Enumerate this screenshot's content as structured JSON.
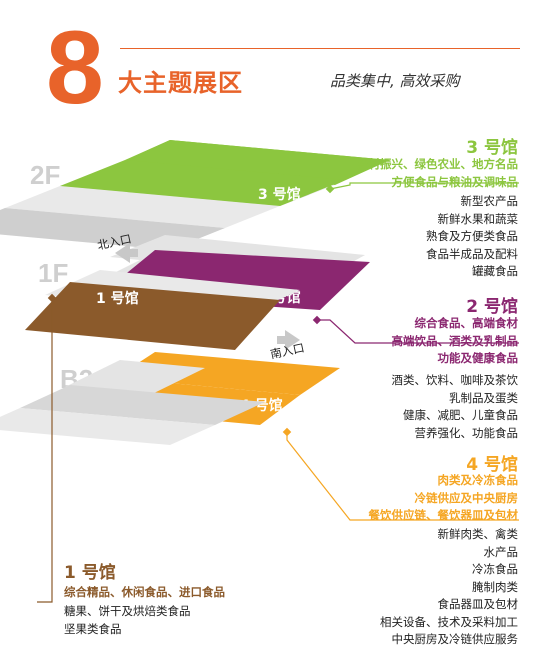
{
  "header": {
    "number": "8",
    "title": "大主题展区",
    "tagline": "品类集中, 高效采购"
  },
  "floors": [
    "2F",
    "1F",
    "B2"
  ],
  "entrances": {
    "north": "北入口",
    "south": "南入口"
  },
  "stripe_labels": {
    "hall3": "3 号馆",
    "hall2": "2 号馆",
    "hall1": "1 号馆",
    "hall4": "4 号馆"
  },
  "halls": {
    "hall3": {
      "title": "3 号馆",
      "color": "#8cc63f",
      "highlights": [
        "乡村振兴、绿色农业、地方名品",
        "方便食品与粮油及调味品"
      ],
      "items": [
        "新型农产品",
        "新鲜水果和蔬菜",
        "熟食及方便类食品",
        "食品半成品及配料",
        "罐藏食品"
      ]
    },
    "hall2": {
      "title": "2 号馆",
      "color": "#8b2770",
      "highlights": [
        "综合食品、高端食材",
        "高端饮品、酒类及乳制品",
        "功能及健康食品"
      ],
      "items": [
        "酒类、饮料、咖啡及茶饮",
        "乳制品及蛋类",
        "健康、减肥、儿童食品",
        "营养强化、功能食品"
      ]
    },
    "hall4": {
      "title": "4 号馆",
      "color": "#f5a623",
      "highlights": [
        "肉类及冷冻食品",
        "冷链供应及中央厨房",
        "餐饮供应链、餐饮器皿及包材"
      ],
      "items": [
        "新鲜肉类、禽类",
        "水产品",
        "冷冻食品",
        "腌制肉类",
        "食品器皿及包材",
        "相关设备、技术及采料加工",
        "中央厨房及冷链供应服务"
      ]
    },
    "hall1": {
      "title": "1 号馆",
      "color": "#8b5a2b",
      "highlights": [
        "综合精品、休闲食品、进口食品"
      ],
      "items": [
        "糖果、饼干及烘焙类食品",
        "坚果类食品"
      ]
    }
  }
}
